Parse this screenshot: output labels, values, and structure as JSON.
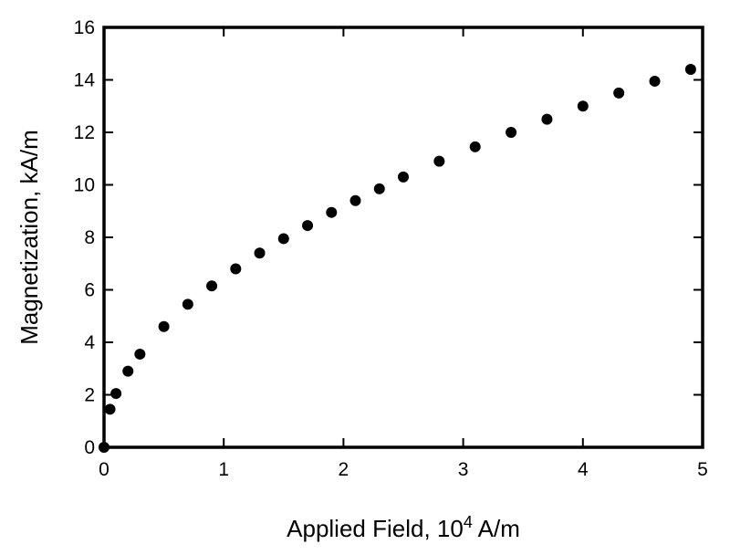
{
  "chart_data": {
    "type": "scatter",
    "x_label": [
      "Applied Field, 10",
      "4",
      " A/m"
    ],
    "y_label": "Magnetization, kA/m",
    "x": [
      0,
      0.05,
      0.1,
      0.2,
      0.3,
      0.5,
      0.7,
      0.9,
      1.1,
      1.3,
      1.5,
      1.7,
      1.9,
      2.1,
      2.3,
      2.5,
      2.8,
      3.1,
      3.4,
      3.7,
      4.0,
      4.3,
      4.6,
      4.9
    ],
    "values": [
      0,
      1.45,
      2.05,
      2.9,
      3.55,
      4.6,
      5.45,
      6.15,
      6.8,
      7.4,
      7.95,
      8.45,
      8.95,
      9.4,
      9.85,
      10.3,
      10.9,
      11.45,
      12.0,
      12.5,
      13.0,
      13.5,
      13.95,
      14.4
    ],
    "color": "#000000",
    "xlim": [
      0,
      5
    ],
    "xticks": [
      0,
      1,
      2,
      3,
      4,
      5
    ],
    "ylim": [
      0,
      16
    ],
    "yticks": [
      0,
      2,
      4,
      6,
      8,
      10,
      12,
      14,
      16
    ]
  }
}
